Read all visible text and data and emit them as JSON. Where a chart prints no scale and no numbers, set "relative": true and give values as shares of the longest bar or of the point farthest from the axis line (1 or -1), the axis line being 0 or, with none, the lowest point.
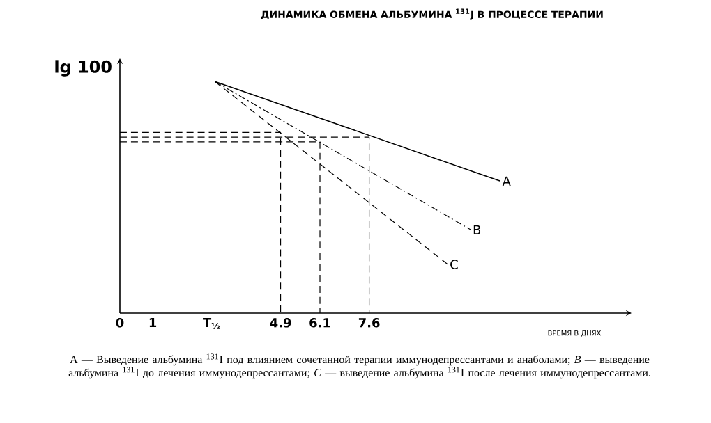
{
  "chart_data": {
    "type": "line",
    "relative": true,
    "title": "ДИНАМИКА ОБМЕНА АЛЬБУМИНА $^{131}$J В ПРОЦЕССЕ ТЕРАПИИ",
    "xlabel": "ВРЕМЯ В ДНЯХ",
    "ylabel": "lg 100",
    "xlim": [
      0,
      15.6
    ],
    "xticks": [
      0,
      1,
      {
        "value": 2.8,
        "label": "T$_{½}$"
      },
      4.9,
      6.1,
      7.6
    ],
    "series": [
      {
        "name": "A",
        "color": "#000000",
        "line_style": "solid",
        "x": [
          2.9,
          11.6
        ],
        "values": [
          1.0,
          0.57
        ]
      },
      {
        "name": "B",
        "color": "#000000",
        "line_style": "dashdot",
        "x": [
          2.9,
          10.7
        ],
        "values": [
          1.0,
          0.36
        ]
      },
      {
        "name": "C",
        "color": "#000000",
        "line_style": "dashed",
        "x": [
          2.9,
          10.0
        ],
        "values": [
          1.0,
          0.21
        ]
      },
      {
        "color": "#000000",
        "line_style": "dashed",
        "x": [
          0,
          4.9,
          4.9
        ],
        "values": [
          0.78,
          0.78,
          0
        ]
      },
      {
        "color": "#000000",
        "line_style": "dashed",
        "x": [
          0,
          6.1,
          6.1
        ],
        "values": [
          0.74,
          0.74,
          0
        ]
      },
      {
        "color": "#000000",
        "line_style": "dashed",
        "x": [
          0,
          7.6,
          7.6
        ],
        "values": [
          0.76,
          0.76,
          0
        ]
      }
    ],
    "annotations": [
      "A — Выведение альбумина $^{131}$I под влиянием сочетанной терапии иммунодепрессантами и анаболами; *B* — выведение альбумина $^{131}$I до лечения иммунодепрессантами; *C* — выведение альбумина $^{131}$I после лечения иммунодепрессантами."
    ]
  }
}
